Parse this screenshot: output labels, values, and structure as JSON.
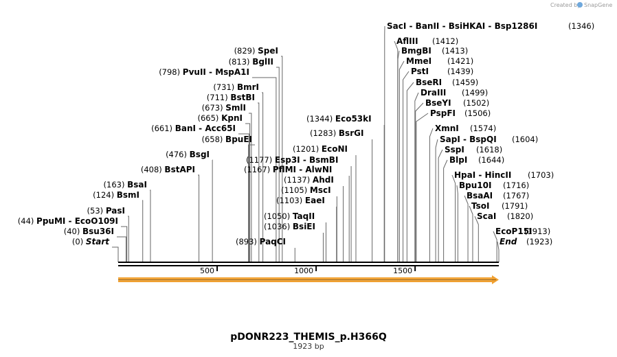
{
  "credit": "Created by",
  "brand": "SnapGene",
  "plasmid": {
    "name": "pDONR223_THEMIS_p.H366Q",
    "length_label": "1923 bp",
    "length": 1923
  },
  "axis": {
    "ticks": [
      500,
      1000,
      1500
    ]
  },
  "left_sites": [
    {
      "pos": "(829)",
      "enzymes": [
        "SpeI"
      ]
    },
    {
      "pos": "(813)",
      "enzymes": [
        "BglII"
      ]
    },
    {
      "pos": "(798)",
      "enzymes": [
        "PvuII",
        "MspA1I"
      ]
    },
    {
      "pos": "(731)",
      "enzymes": [
        "BmrI"
      ]
    },
    {
      "pos": "(711)",
      "enzymes": [
        "BstBI"
      ]
    },
    {
      "pos": "(673)",
      "enzymes": [
        "SmlI"
      ]
    },
    {
      "pos": "(665)",
      "enzymes": [
        "KpnI"
      ]
    },
    {
      "pos": "(661)",
      "enzymes": [
        "BanI",
        "Acc65I"
      ]
    },
    {
      "pos": "(658)",
      "enzymes": [
        "BpuEI"
      ]
    },
    {
      "pos": "(476)",
      "enzymes": [
        "BsgI"
      ]
    },
    {
      "pos": "(408)",
      "enzymes": [
        "BstAPI"
      ]
    },
    {
      "pos": "(163)",
      "enzymes": [
        "BsaI"
      ]
    },
    {
      "pos": "(124)",
      "enzymes": [
        "BsmI"
      ]
    },
    {
      "pos": "(53)",
      "enzymes": [
        "PasI"
      ]
    },
    {
      "pos": "(44)",
      "enzymes": [
        "PpuMI",
        "EcoO109I"
      ]
    },
    {
      "pos": "(40)",
      "enzymes": [
        "Bsu36I"
      ]
    },
    {
      "pos": "(0)",
      "enzymes": [
        "Start"
      ],
      "italic": true
    }
  ],
  "middle_sites": [
    {
      "pos": "(1344)",
      "enzymes": [
        "Eco53kI"
      ]
    },
    {
      "pos": "(1283)",
      "enzymes": [
        "BsrGI"
      ]
    },
    {
      "pos": "(1201)",
      "enzymes": [
        "EcoNI"
      ]
    },
    {
      "pos": "(1177)",
      "enzymes": [
        "Esp3I",
        "BsmBI"
      ]
    },
    {
      "pos": "(1167)",
      "enzymes": [
        "PflMI",
        "AlwNI"
      ]
    },
    {
      "pos": "(1137)",
      "enzymes": [
        "AhdI"
      ]
    },
    {
      "pos": "(1105)",
      "enzymes": [
        "MscI"
      ]
    },
    {
      "pos": "(1103)",
      "enzymes": [
        "EaeI"
      ]
    },
    {
      "pos": "(1050)",
      "enzymes": [
        "TaqII"
      ]
    },
    {
      "pos": "(1036)",
      "enzymes": [
        "BsiEI"
      ]
    },
    {
      "pos": "(893)",
      "enzymes": [
        "PaqCI"
      ]
    }
  ],
  "right_sites": [
    {
      "pos": "(1346)",
      "enzymes": [
        "SacI",
        "BanII",
        "BsiHKAI",
        "Bsp1286I"
      ]
    },
    {
      "pos": "(1412)",
      "enzymes": [
        "AflIII"
      ]
    },
    {
      "pos": "(1413)",
      "enzymes": [
        "BmgBI"
      ]
    },
    {
      "pos": "(1421)",
      "enzymes": [
        "MmeI"
      ]
    },
    {
      "pos": "(1439)",
      "enzymes": [
        "PstI"
      ]
    },
    {
      "pos": "(1459)",
      "enzymes": [
        "BseRI"
      ]
    },
    {
      "pos": "(1499)",
      "enzymes": [
        "DraIII"
      ]
    },
    {
      "pos": "(1502)",
      "enzymes": [
        "BseYI"
      ]
    },
    {
      "pos": "(1506)",
      "enzymes": [
        "PspFI"
      ]
    },
    {
      "pos": "(1574)",
      "enzymes": [
        "XmnI"
      ]
    },
    {
      "pos": "(1604)",
      "enzymes": [
        "SapI",
        "BspQI"
      ]
    },
    {
      "pos": "(1618)",
      "enzymes": [
        "SspI"
      ]
    },
    {
      "pos": "(1644)",
      "enzymes": [
        "BlpI"
      ]
    },
    {
      "pos": "(1703)",
      "enzymes": [
        "HpaI",
        "HincII"
      ]
    },
    {
      "pos": "(1716)",
      "enzymes": [
        "Bpu10I"
      ]
    },
    {
      "pos": "(1767)",
      "enzymes": [
        "BsaAI"
      ]
    },
    {
      "pos": "(1791)",
      "enzymes": [
        "TsoI"
      ]
    },
    {
      "pos": "(1820)",
      "enzymes": [
        "ScaI"
      ]
    },
    {
      "pos": "(1913)",
      "enzymes": [
        "EcoP15I"
      ]
    },
    {
      "pos": "(1923)",
      "enzymes": [
        "End"
      ],
      "italic": true
    }
  ],
  "colors": {
    "feature_arrow": "#f0a030",
    "feature_arrow_inner": "#f7c27a",
    "leader": "#666666",
    "backbone": "#000000",
    "brand": "#6fa8dc"
  }
}
